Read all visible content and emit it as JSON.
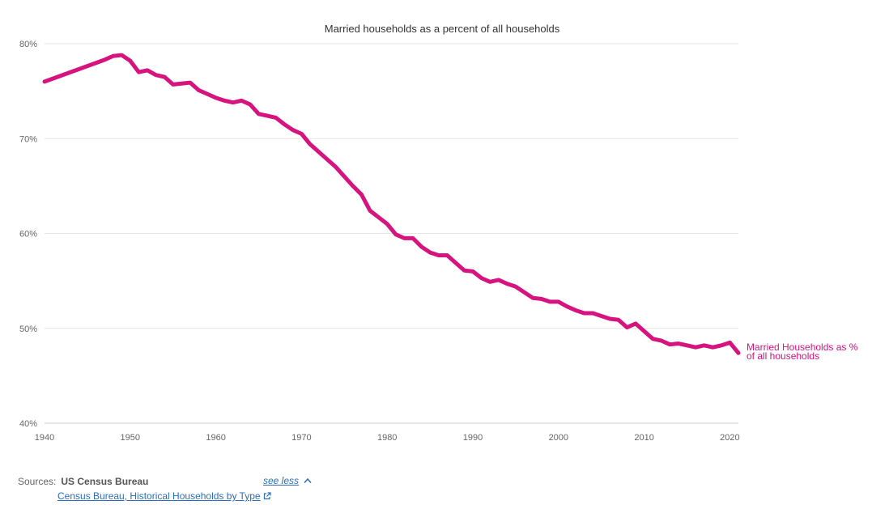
{
  "chart_data": {
    "type": "line",
    "title": "Married households as a percent of all households",
    "xlim": [
      1940,
      2021
    ],
    "ylim": [
      40,
      80
    ],
    "x_ticks": [
      1940,
      1950,
      1960,
      1970,
      1980,
      1990,
      2000,
      2010,
      2020
    ],
    "y_ticks": [
      40,
      50,
      60,
      70,
      80
    ],
    "y_tick_labels": [
      "40%",
      "50%",
      "60%",
      "70%",
      "80%"
    ],
    "grid": true,
    "legend": "direct-label-right",
    "series": [
      {
        "name": "Married Households as % of all households",
        "label_lines": [
          "Married Households as %",
          "of all households"
        ],
        "color": "#d6137f",
        "x": [
          1940,
          1947,
          1948,
          1949,
          1950,
          1951,
          1952,
          1953,
          1954,
          1955,
          1956,
          1957,
          1958,
          1959,
          1960,
          1961,
          1962,
          1963,
          1964,
          1965,
          1966,
          1967,
          1968,
          1969,
          1970,
          1971,
          1972,
          1973,
          1974,
          1975,
          1976,
          1977,
          1978,
          1979,
          1980,
          1981,
          1982,
          1983,
          1984,
          1985,
          1986,
          1987,
          1988,
          1989,
          1990,
          1991,
          1992,
          1993,
          1994,
          1995,
          1996,
          1997,
          1998,
          1999,
          2000,
          2001,
          2002,
          2003,
          2004,
          2005,
          2006,
          2007,
          2008,
          2009,
          2010,
          2011,
          2012,
          2013,
          2014,
          2015,
          2016,
          2017,
          2018,
          2019,
          2020,
          2021
        ],
        "values": [
          76.0,
          78.3,
          78.7,
          78.8,
          78.2,
          77.0,
          77.2,
          76.7,
          76.5,
          75.7,
          75.8,
          75.9,
          75.1,
          74.7,
          74.3,
          74.0,
          73.8,
          74.0,
          73.6,
          72.6,
          72.4,
          72.2,
          71.5,
          70.9,
          70.5,
          69.4,
          68.6,
          67.8,
          67.0,
          66.0,
          65.0,
          64.1,
          62.4,
          61.7,
          61.0,
          59.9,
          59.5,
          59.5,
          58.6,
          58.0,
          57.7,
          57.7,
          56.9,
          56.1,
          56.0,
          55.3,
          54.9,
          55.1,
          54.7,
          54.4,
          53.8,
          53.2,
          53.1,
          52.8,
          52.8,
          52.3,
          51.9,
          51.6,
          51.6,
          51.3,
          51.0,
          50.9,
          50.1,
          50.5,
          49.7,
          48.9,
          48.7,
          48.3,
          48.4,
          48.2,
          48.0,
          48.2,
          48.0,
          48.2,
          48.5,
          47.4
        ]
      }
    ]
  },
  "sources": {
    "key": "Sources:",
    "org": "US Census Bureau",
    "toggle_label": "see less",
    "link_text": "Census Bureau, Historical Households by Type",
    "toggle_icon": "chevron-up-icon",
    "link_icon": "external-link-icon"
  }
}
